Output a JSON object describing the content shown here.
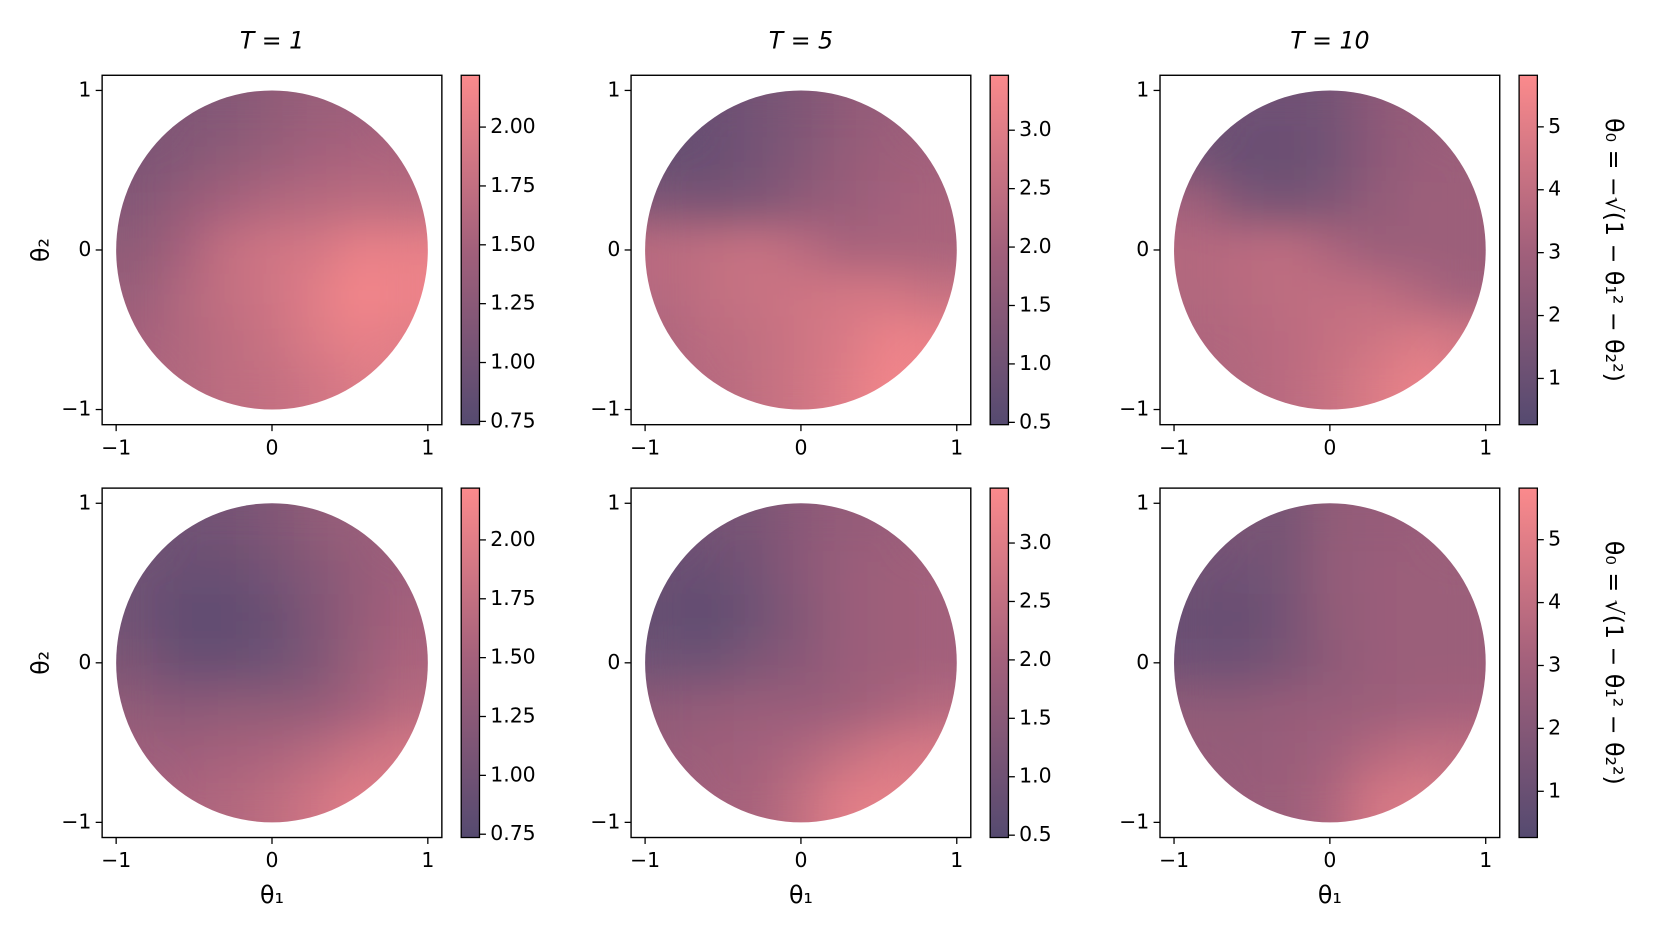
{
  "colormap": [
    "#554a70",
    "#a2607b",
    "#fb8a8c"
  ],
  "chart_data": [
    {
      "type": "heatmap",
      "title": "T = 1",
      "ylabel": "θ₂",
      "x": [
        -0.857,
        -0.571,
        -0.286,
        0,
        0.286,
        0.571,
        0.857
      ],
      "y": [
        0.857,
        0.571,
        0.286,
        0,
        -0.286,
        -0.571,
        -0.857
      ],
      "z": [
        [
          null,
          1.15,
          1.2,
          1.3,
          1.4,
          1.45,
          null
        ],
        [
          1.1,
          1.2,
          1.3,
          1.4,
          1.5,
          1.55,
          1.55
        ],
        [
          1.2,
          1.35,
          1.5,
          1.6,
          1.65,
          1.7,
          1.7
        ],
        [
          1.3,
          1.5,
          1.75,
          1.85,
          1.9,
          2.05,
          2.05
        ],
        [
          1.4,
          1.6,
          1.75,
          1.85,
          2.0,
          2.15,
          2.1
        ],
        [
          1.5,
          1.6,
          1.7,
          1.8,
          1.95,
          2.05,
          2.0
        ],
        [
          null,
          1.6,
          1.7,
          1.75,
          1.85,
          1.95,
          null
        ]
      ],
      "xlim": [
        -1.09,
        1.09
      ],
      "ylim": [
        -1.095,
        1.095
      ],
      "xticks": [
        {
          "value": -1,
          "label": "−1"
        },
        0,
        1
      ],
      "yticks": [
        {
          "value": -1,
          "label": "−1"
        },
        0,
        1
      ],
      "clim": [
        0.736,
        2.22
      ],
      "cticks": [
        0.75,
        {
          "value": 1,
          "label": "1.00"
        },
        1.25,
        {
          "value": 1.5,
          "label": "1.50"
        },
        1.75,
        {
          "value": 2,
          "label": "2.00"
        }
      ]
    },
    {
      "type": "heatmap",
      "title": "T = 5",
      "x": [
        -0.857,
        -0.571,
        -0.286,
        0,
        0.286,
        0.571,
        0.857
      ],
      "y": [
        0.857,
        0.571,
        0.286,
        0,
        -0.286,
        -0.571,
        -0.857
      ],
      "z": [
        [
          null,
          0.9,
          1.1,
          1.3,
          1.6,
          1.8,
          null
        ],
        [
          0.8,
          0.9,
          1.1,
          1.4,
          1.7,
          1.9,
          2.0
        ],
        [
          1.3,
          1.2,
          1.3,
          1.6,
          1.8,
          2.0,
          2.1
        ],
        [
          2.4,
          2.5,
          2.6,
          2.4,
          2.1,
          2.1,
          2.1
        ],
        [
          2.3,
          2.5,
          2.6,
          2.7,
          2.8,
          2.8,
          2.6
        ],
        [
          2.2,
          2.4,
          2.5,
          2.7,
          2.9,
          3.2,
          3.2
        ],
        [
          null,
          2.3,
          2.5,
          2.7,
          3.0,
          3.3,
          null
        ]
      ],
      "xlim": [
        -1.09,
        1.09
      ],
      "ylim": [
        -1.095,
        1.095
      ],
      "xticks": [
        {
          "value": -1,
          "label": "−1"
        },
        0,
        1
      ],
      "yticks": [
        {
          "value": -1,
          "label": "−1"
        },
        0,
        1
      ],
      "clim": [
        0.48,
        3.47
      ],
      "cticks": [
        0.5,
        {
          "value": 1,
          "label": "1.0"
        },
        1.5,
        {
          "value": 2,
          "label": "2.0"
        },
        2.5,
        {
          "value": 3,
          "label": "3.0"
        }
      ]
    },
    {
      "type": "heatmap",
      "title": "T = 10",
      "side_label": "θ₀ = −√(1 − θ₁² − θ₂²)",
      "x": [
        -0.857,
        -0.571,
        -0.286,
        0,
        0.286,
        0.571,
        0.857
      ],
      "y": [
        0.857,
        0.571,
        0.286,
        0,
        -0.286,
        -0.571,
        -0.857
      ],
      "z": [
        [
          null,
          1.2,
          1.2,
          1.4,
          2.2,
          2.6,
          null
        ],
        [
          1.3,
          1.0,
          1.0,
          1.3,
          2.2,
          2.7,
          2.8
        ],
        [
          3.0,
          1.8,
          1.5,
          1.8,
          2.5,
          2.8,
          2.9
        ],
        [
          3.6,
          3.8,
          3.9,
          3.4,
          2.8,
          2.8,
          2.8
        ],
        [
          3.5,
          3.7,
          3.9,
          4.0,
          4.0,
          3.5,
          3.0
        ],
        [
          3.4,
          3.6,
          3.8,
          4.1,
          4.4,
          4.8,
          4.6
        ],
        [
          null,
          3.5,
          3.8,
          4.2,
          4.8,
          5.3,
          null
        ]
      ],
      "xlim": [
        -1.09,
        1.09
      ],
      "ylim": [
        -1.095,
        1.095
      ],
      "xticks": [
        {
          "value": -1,
          "label": "−1"
        },
        0,
        1
      ],
      "yticks": [
        {
          "value": -1,
          "label": "−1"
        },
        0,
        1
      ],
      "clim": [
        0.265,
        5.82
      ],
      "cticks": [
        1,
        2,
        3,
        4,
        5
      ]
    },
    {
      "type": "heatmap",
      "xlabel": "θ₁",
      "ylabel": "θ₂",
      "x": [
        -0.857,
        -0.571,
        -0.286,
        0,
        0.286,
        0.571,
        0.857
      ],
      "y": [
        0.857,
        0.571,
        0.286,
        0,
        -0.286,
        -0.571,
        -0.857
      ],
      "z": [
        [
          null,
          1.0,
          1.05,
          1.15,
          1.3,
          1.4,
          null
        ],
        [
          1.0,
          0.95,
          0.95,
          1.05,
          1.2,
          1.35,
          1.45
        ],
        [
          1.0,
          0.85,
          0.85,
          0.95,
          1.15,
          1.35,
          1.5
        ],
        [
          1.1,
          0.95,
          0.95,
          1.0,
          1.15,
          1.4,
          1.55
        ],
        [
          1.3,
          1.25,
          1.3,
          1.3,
          1.35,
          1.5,
          1.65
        ],
        [
          1.45,
          1.45,
          1.5,
          1.55,
          1.65,
          1.8,
          1.9
        ],
        [
          null,
          1.55,
          1.6,
          1.7,
          1.85,
          2.0,
          null
        ]
      ],
      "xlim": [
        -1.09,
        1.09
      ],
      "ylim": [
        -1.095,
        1.095
      ],
      "xticks": [
        {
          "value": -1,
          "label": "−1"
        },
        0,
        1
      ],
      "yticks": [
        {
          "value": -1,
          "label": "−1"
        },
        0,
        1
      ],
      "clim": [
        0.736,
        2.22
      ],
      "cticks": [
        0.75,
        {
          "value": 1,
          "label": "1.00"
        },
        1.25,
        {
          "value": 1.5,
          "label": "1.50"
        },
        1.75,
        {
          "value": 2,
          "label": "2.00"
        }
      ]
    },
    {
      "type": "heatmap",
      "xlabel": "θ₁",
      "x": [
        -0.857,
        -0.571,
        -0.286,
        0,
        0.286,
        0.571,
        0.857
      ],
      "y": [
        0.857,
        0.571,
        0.286,
        0,
        -0.286,
        -0.571,
        -0.857
      ],
      "z": [
        [
          null,
          1.1,
          1.2,
          1.5,
          1.7,
          1.8,
          null
        ],
        [
          0.9,
          0.9,
          1.1,
          1.5,
          1.8,
          1.9,
          2.0
        ],
        [
          0.8,
          0.7,
          1.0,
          1.4,
          1.8,
          1.9,
          2.0
        ],
        [
          1.0,
          1.0,
          1.3,
          1.5,
          1.8,
          1.9,
          2.0
        ],
        [
          1.6,
          1.7,
          1.8,
          1.8,
          1.9,
          2.1,
          2.3
        ],
        [
          1.8,
          1.9,
          2.0,
          2.2,
          2.5,
          2.8,
          2.9
        ],
        [
          null,
          2.0,
          2.1,
          2.5,
          3.0,
          3.1,
          null
        ]
      ],
      "xlim": [
        -1.09,
        1.09
      ],
      "ylim": [
        -1.095,
        1.095
      ],
      "xticks": [
        {
          "value": -1,
          "label": "−1"
        },
        0,
        1
      ],
      "yticks": [
        {
          "value": -1,
          "label": "−1"
        },
        0,
        1
      ],
      "clim": [
        0.48,
        3.47
      ],
      "cticks": [
        0.5,
        {
          "value": 1,
          "label": "1.0"
        },
        1.5,
        {
          "value": 2,
          "label": "2.0"
        },
        2.5,
        {
          "value": 3,
          "label": "3.0"
        }
      ]
    },
    {
      "type": "heatmap",
      "xlabel": "θ₁",
      "side_label": "θ₀ = √(1 − θ₁² − θ₂²)",
      "x": [
        -0.857,
        -0.571,
        -0.286,
        0,
        0.286,
        0.571,
        0.857
      ],
      "y": [
        0.857,
        0.571,
        0.286,
        0,
        -0.286,
        -0.571,
        -0.857
      ],
      "z": [
        [
          null,
          1.6,
          1.5,
          2.4,
          2.6,
          2.7,
          null
        ],
        [
          1.3,
          1.2,
          1.5,
          2.5,
          2.7,
          2.8,
          2.8
        ],
        [
          1.0,
          0.9,
          1.4,
          2.4,
          2.7,
          2.8,
          2.8
        ],
        [
          1.2,
          1.2,
          1.6,
          2.3,
          2.7,
          2.8,
          2.8
        ],
        [
          2.4,
          2.4,
          2.6,
          2.7,
          2.8,
          3.0,
          3.1
        ],
        [
          2.6,
          2.6,
          2.7,
          3.0,
          3.6,
          4.0,
          4.0
        ],
        [
          null,
          2.7,
          2.8,
          3.4,
          4.5,
          4.8,
          null
        ]
      ],
      "xlim": [
        -1.09,
        1.09
      ],
      "ylim": [
        -1.095,
        1.095
      ],
      "xticks": [
        {
          "value": -1,
          "label": "−1"
        },
        0,
        1
      ],
      "yticks": [
        {
          "value": -1,
          "label": "−1"
        },
        0,
        1
      ],
      "clim": [
        0.265,
        5.82
      ],
      "cticks": [
        1,
        2,
        3,
        4,
        5
      ]
    }
  ]
}
